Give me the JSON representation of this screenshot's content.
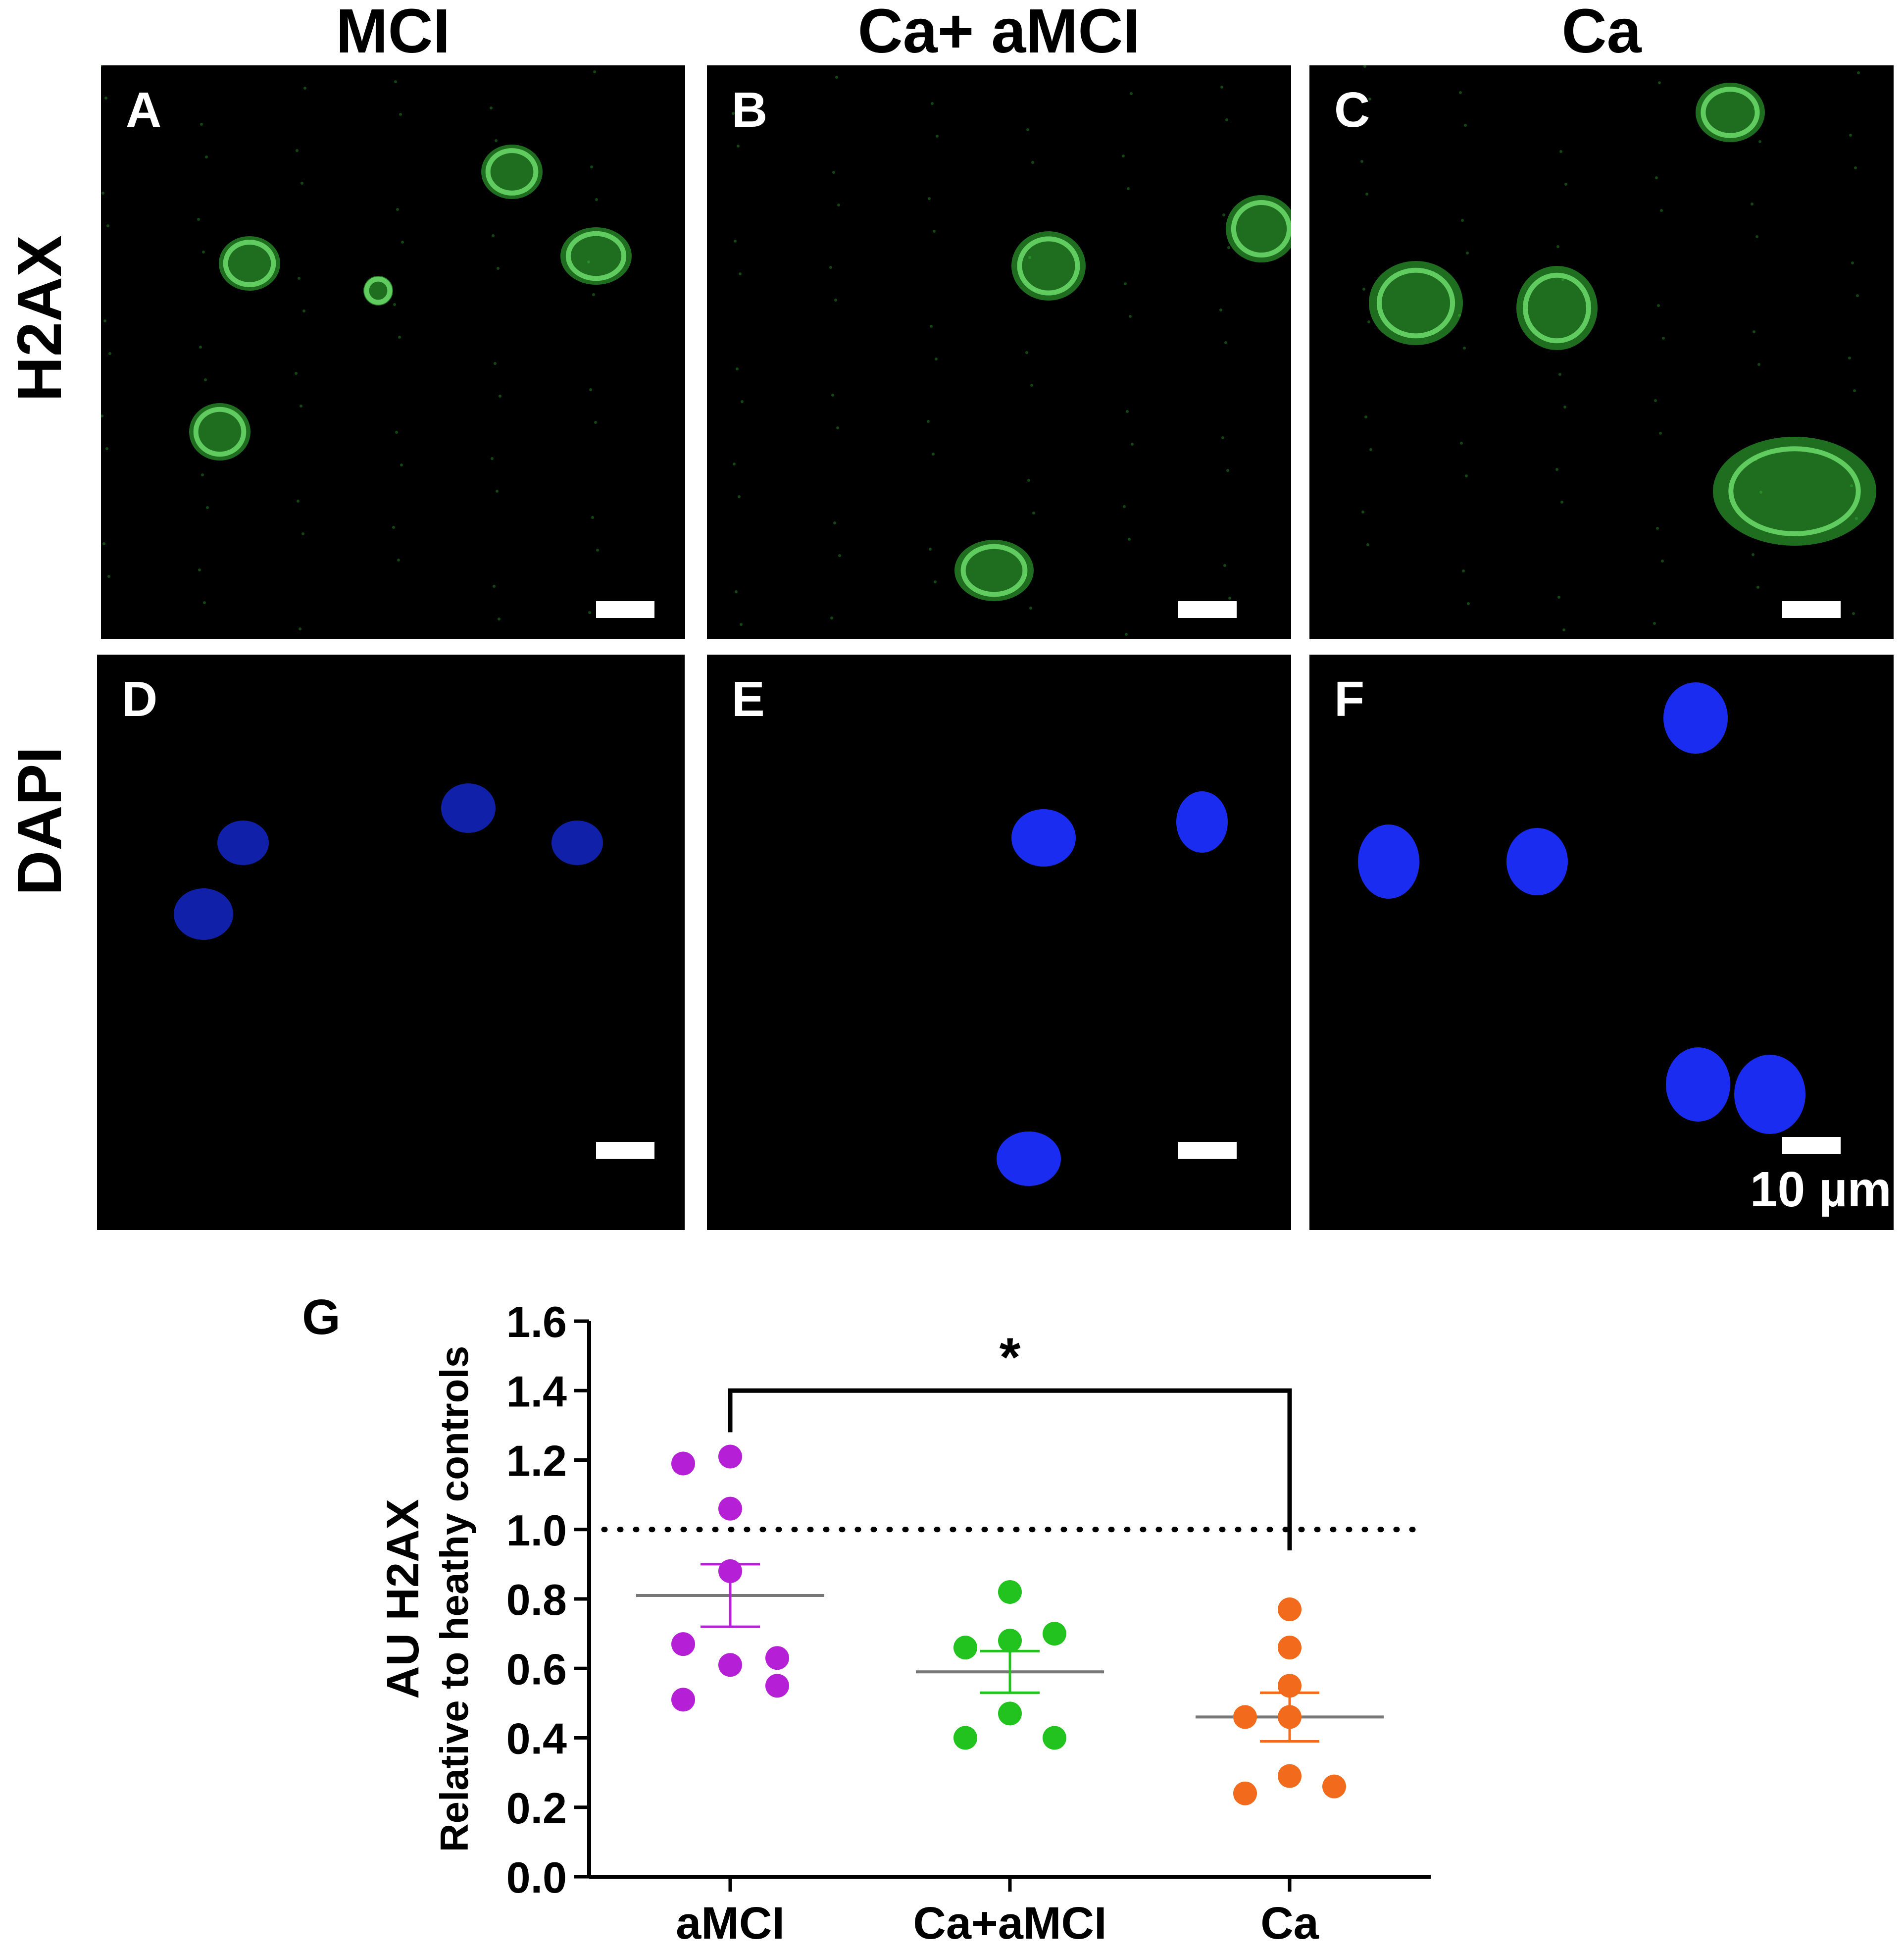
{
  "column_titles": [
    "MCI",
    "Ca+ aMCI",
    "Ca"
  ],
  "row_titles": [
    "H2AX",
    "DAPI"
  ],
  "panels": [
    {
      "letter": "A",
      "stain": "H2AX",
      "color": "#39c93a"
    },
    {
      "letter": "B",
      "stain": "H2AX",
      "color": "#39c93a"
    },
    {
      "letter": "C",
      "stain": "H2AX",
      "color": "#39c93a"
    },
    {
      "letter": "D",
      "stain": "DAPI",
      "color": "#1020a8"
    },
    {
      "letter": "E",
      "stain": "DAPI",
      "color": "#1a2cf0"
    },
    {
      "letter": "F",
      "stain": "DAPI",
      "color": "#1a2cf0"
    }
  ],
  "scale_bar_label": "10 µm",
  "chart_panel_letter": "G",
  "chart_data": {
    "type": "scatter",
    "categories": [
      "aMCI",
      "Ca+aMCI",
      "Ca"
    ],
    "series": [
      {
        "values": [
          1.19,
          1.21,
          1.06,
          0.88,
          0.67,
          0.61,
          0.63,
          0.51,
          0.55
        ],
        "mean": 0.81,
        "sem_low": 0.72,
        "sem_high": 0.9,
        "color": "#b51fd6"
      },
      {
        "values": [
          0.82,
          0.66,
          0.68,
          0.7,
          0.47,
          0.4,
          0.4
        ],
        "mean": 0.59,
        "sem_low": 0.53,
        "sem_high": 0.65,
        "color": "#22c31f"
      },
      {
        "values": [
          0.77,
          0.66,
          0.55,
          0.46,
          0.46,
          0.29,
          0.24,
          0.26
        ],
        "mean": 0.46,
        "sem_low": 0.39,
        "sem_high": 0.53,
        "color": "#f26a1b"
      }
    ],
    "xlabel": "",
    "ylabel": "AU H2AX",
    "ylabel2": "Relative to heathy controls",
    "ylim": [
      0,
      1.6
    ],
    "yticks": [
      "0.0",
      "0.2",
      "0.4",
      "0.6",
      "0.8",
      "1.0",
      "1.2",
      "1.4",
      "1.6"
    ],
    "reference_line": 1.0,
    "significance": {
      "from": "aMCI",
      "to": "Ca",
      "label": "*"
    },
    "grid": false,
    "legend": "none"
  }
}
